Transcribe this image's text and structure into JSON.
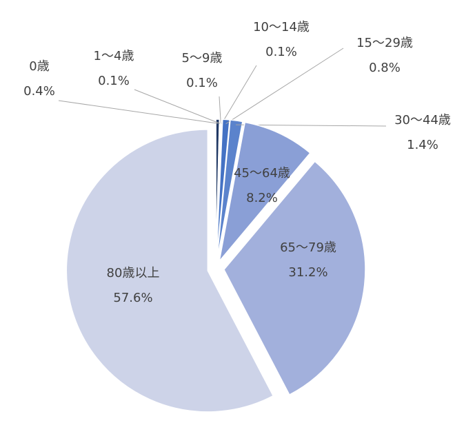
{
  "chart_data": {
    "type": "pie",
    "categories": [
      "0歳",
      "1～4歳",
      "5～9歳",
      "10～14歳",
      "15～29歳",
      "30～44歳",
      "45～64歳",
      "65～79歳",
      "80歳以上"
    ],
    "values": [
      0.4,
      0.1,
      0.1,
      0.1,
      0.8,
      1.4,
      8.2,
      31.2,
      57.6
    ],
    "value_labels": [
      "0.4%",
      "0.1%",
      "0.1%",
      "0.1%",
      "0.8%",
      "1.4%",
      "8.2%",
      "31.2%",
      "57.6%"
    ],
    "colors": [
      "#203864",
      "#2a4b86",
      "#2f5597",
      "#3a62b0",
      "#4472c4",
      "#5b83cc",
      "#8a9fd6",
      "#a2b0dc",
      "#cdd3e8"
    ]
  }
}
